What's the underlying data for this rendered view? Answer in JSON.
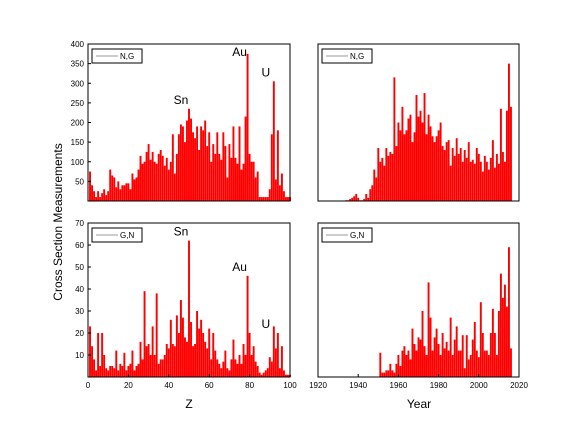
{
  "figure": {
    "ylabel": "Cross Section Measurements",
    "bar_color": "#ff0000"
  },
  "chart_data": [
    {
      "type": "bar",
      "legend": "N,G",
      "xlabel": "",
      "xlim": [
        0,
        100
      ],
      "ylim": [
        0,
        400
      ],
      "yticks": [
        50,
        100,
        150,
        200,
        250,
        300,
        350,
        400
      ],
      "xticks": [],
      "annotations": [
        {
          "text": "Sn",
          "x": 50,
          "y": 235
        },
        {
          "text": "Au",
          "x": 79,
          "y": 375
        },
        {
          "text": "U",
          "x": 92,
          "y": 305
        }
      ],
      "x": [
        1,
        2,
        3,
        4,
        5,
        6,
        7,
        8,
        9,
        10,
        11,
        12,
        13,
        14,
        15,
        16,
        17,
        18,
        19,
        20,
        21,
        22,
        23,
        24,
        25,
        26,
        27,
        28,
        29,
        30,
        31,
        32,
        33,
        34,
        35,
        36,
        37,
        38,
        39,
        40,
        41,
        42,
        43,
        44,
        45,
        46,
        47,
        48,
        49,
        50,
        51,
        52,
        53,
        54,
        55,
        56,
        57,
        58,
        59,
        60,
        61,
        62,
        63,
        64,
        65,
        66,
        67,
        68,
        69,
        70,
        71,
        72,
        73,
        74,
        75,
        76,
        77,
        78,
        79,
        80,
        81,
        82,
        83,
        84,
        85,
        86,
        87,
        88,
        89,
        90,
        91,
        92,
        93,
        94,
        95,
        96,
        97,
        98,
        99,
        100
      ],
      "values": [
        75,
        40,
        25,
        10,
        25,
        10,
        20,
        30,
        15,
        25,
        80,
        65,
        60,
        35,
        50,
        30,
        40,
        40,
        45,
        45,
        30,
        70,
        55,
        60,
        80,
        115,
        95,
        100,
        125,
        145,
        105,
        125,
        100,
        95,
        120,
        130,
        115,
        90,
        110,
        80,
        100,
        170,
        70,
        120,
        170,
        195,
        190,
        150,
        205,
        235,
        210,
        175,
        160,
        190,
        130,
        190,
        180,
        205,
        140,
        175,
        100,
        145,
        120,
        175,
        120,
        105,
        175,
        140,
        60,
        145,
        110,
        190,
        110,
        95,
        190,
        80,
        95,
        215,
        375,
        120,
        100,
        100,
        60,
        75,
        10,
        10,
        10,
        10,
        10,
        30,
        170,
        305,
        55,
        180,
        40,
        70,
        25,
        10,
        10,
        10
      ]
    },
    {
      "type": "bar",
      "legend": "N,G",
      "xlabel": "",
      "xlim": [
        1920,
        2020
      ],
      "ylim": [
        0,
        400
      ],
      "yticks": [],
      "xticks": [],
      "annotations": [],
      "x": [
        1934,
        1935,
        1936,
        1937,
        1938,
        1939,
        1940,
        1941,
        1942,
        1943,
        1944,
        1945,
        1946,
        1947,
        1948,
        1949,
        1950,
        1951,
        1952,
        1953,
        1954,
        1955,
        1956,
        1957,
        1958,
        1959,
        1960,
        1961,
        1962,
        1963,
        1964,
        1965,
        1966,
        1967,
        1968,
        1969,
        1970,
        1971,
        1972,
        1973,
        1974,
        1975,
        1976,
        1977,
        1978,
        1979,
        1980,
        1981,
        1982,
        1983,
        1984,
        1985,
        1986,
        1987,
        1988,
        1989,
        1990,
        1991,
        1992,
        1993,
        1994,
        1995,
        1996,
        1997,
        1998,
        1999,
        2000,
        2001,
        2002,
        2003,
        2004,
        2005,
        2006,
        2007,
        2008,
        2009,
        2010,
        2011,
        2012,
        2013,
        2014,
        2015,
        2016
      ],
      "values": [
        2,
        2,
        5,
        8,
        12,
        18,
        8,
        2,
        2,
        5,
        18,
        8,
        30,
        40,
        80,
        60,
        135,
        100,
        110,
        90,
        135,
        115,
        125,
        120,
        315,
        140,
        200,
        180,
        240,
        170,
        180,
        210,
        220,
        150,
        175,
        270,
        215,
        230,
        200,
        275,
        170,
        220,
        190,
        165,
        150,
        165,
        180,
        200,
        140,
        130,
        150,
        155,
        90,
        135,
        115,
        160,
        120,
        135,
        100,
        130,
        110,
        150,
        100,
        105,
        95,
        135,
        120,
        100,
        75,
        115,
        100,
        80,
        110,
        155,
        85,
        120,
        95,
        235,
        125,
        100,
        230,
        350,
        240
      ]
    },
    {
      "type": "bar",
      "legend": "G,N",
      "xlabel": "Z",
      "xlim": [
        0,
        100
      ],
      "ylim": [
        0,
        70
      ],
      "yticks": [
        10,
        20,
        30,
        40,
        50,
        60,
        70
      ],
      "xticks": [
        0,
        20,
        40,
        60,
        80,
        100
      ],
      "annotations": [
        {
          "text": "Sn",
          "x": 50,
          "y": 62
        },
        {
          "text": "Au",
          "x": 79,
          "y": 46
        },
        {
          "text": "U",
          "x": 92,
          "y": 20
        }
      ],
      "x": [
        1,
        2,
        3,
        4,
        5,
        6,
        7,
        8,
        9,
        10,
        11,
        12,
        13,
        14,
        15,
        16,
        17,
        18,
        19,
        20,
        21,
        22,
        23,
        24,
        25,
        26,
        27,
        28,
        29,
        30,
        31,
        32,
        33,
        34,
        35,
        36,
        37,
        38,
        39,
        40,
        41,
        42,
        43,
        44,
        45,
        46,
        47,
        48,
        49,
        50,
        51,
        52,
        53,
        54,
        55,
        56,
        57,
        58,
        59,
        60,
        61,
        62,
        63,
        64,
        65,
        66,
        67,
        68,
        69,
        70,
        71,
        72,
        73,
        74,
        75,
        76,
        77,
        78,
        79,
        80,
        81,
        82,
        83,
        84,
        85,
        86,
        87,
        88,
        89,
        90,
        91,
        92,
        93,
        94,
        95,
        96,
        97,
        98,
        99,
        100
      ],
      "values": [
        23,
        14,
        8,
        3,
        20,
        5,
        20,
        10,
        4,
        3,
        5,
        5,
        4,
        12,
        3,
        6,
        5,
        11,
        3,
        5,
        6,
        12,
        3,
        5,
        6,
        16,
        8,
        39,
        14,
        15,
        10,
        23,
        10,
        38,
        6,
        8,
        8,
        10,
        15,
        13,
        26,
        15,
        14,
        28,
        20,
        35,
        27,
        18,
        16,
        62,
        25,
        14,
        15,
        30,
        22,
        26,
        20,
        16,
        13,
        22,
        8,
        20,
        12,
        8,
        6,
        4,
        7,
        12,
        4,
        3,
        8,
        17,
        8,
        6,
        10,
        6,
        15,
        10,
        46,
        20,
        10,
        14,
        7,
        5,
        2,
        1,
        2,
        3,
        4,
        9,
        7,
        23,
        13,
        20,
        4,
        14,
        3,
        1,
        1,
        1
      ]
    },
    {
      "type": "bar",
      "legend": "G,N",
      "xlabel": "Year",
      "xlim": [
        1920,
        2020
      ],
      "ylim": [
        0,
        70
      ],
      "yticks": [],
      "xticks": [
        1920,
        1940,
        1960,
        1980,
        2000,
        2020
      ],
      "annotations": [],
      "x": [
        1951,
        1952,
        1953,
        1954,
        1955,
        1956,
        1957,
        1958,
        1959,
        1960,
        1961,
        1962,
        1963,
        1964,
        1965,
        1966,
        1967,
        1968,
        1969,
        1970,
        1971,
        1972,
        1973,
        1974,
        1975,
        1976,
        1977,
        1978,
        1979,
        1980,
        1981,
        1982,
        1983,
        1984,
        1985,
        1986,
        1987,
        1988,
        1989,
        1990,
        1991,
        1992,
        1993,
        1994,
        1995,
        1996,
        1997,
        1998,
        1999,
        2000,
        2001,
        2002,
        2003,
        2004,
        2005,
        2006,
        2007,
        2008,
        2009,
        2010,
        2011,
        2012,
        2013,
        2014,
        2015,
        2016
      ],
      "values": [
        11,
        2,
        2,
        3,
        3,
        6,
        3,
        2,
        6,
        10,
        5,
        12,
        14,
        10,
        12,
        8,
        22,
        15,
        12,
        18,
        17,
        30,
        14,
        10,
        43,
        27,
        12,
        18,
        22,
        15,
        10,
        20,
        13,
        16,
        12,
        27,
        10,
        17,
        23,
        12,
        12,
        19,
        4,
        19,
        8,
        10,
        17,
        25,
        12,
        9,
        34,
        20,
        12,
        12,
        10,
        20,
        31,
        20,
        10,
        30,
        47,
        36,
        42,
        32,
        59,
        13
      ]
    }
  ]
}
